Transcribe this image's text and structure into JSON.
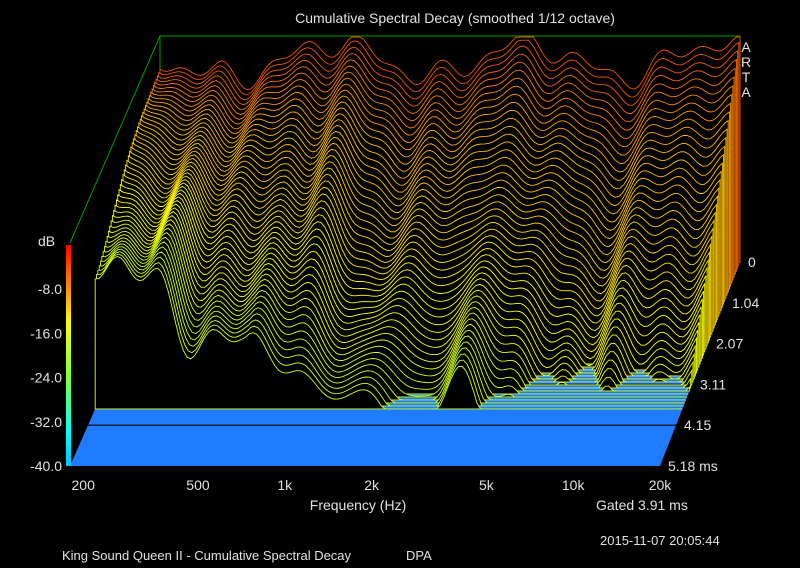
{
  "chart_data": {
    "type": "waterfall",
    "title": "Cumulative Spectral Decay (smoothed 1/12 octave)",
    "xlabel": "Frequency (Hz)",
    "x_scale": "log",
    "xlim": [
      180,
      20000
    ],
    "x_ticks": [
      "200",
      "500",
      "1k",
      "2k",
      "5k",
      "10k",
      "20k"
    ],
    "zlabel": "dB",
    "zlim": [
      -40,
      0
    ],
    "z_ticks": [
      "-8.0",
      "-16.0",
      "-24.0",
      "-32.0",
      "-40.0"
    ],
    "time_ticks": [
      "0",
      "1.04",
      "2.07",
      "3.11",
      "4.15",
      "5.18 ms"
    ],
    "time_range_ms": [
      0,
      5.18
    ],
    "gated": "Gated 3.91 ms",
    "colorscale": [
      "#cc0000",
      "#ff7a00",
      "#ffff00",
      "#00ff80",
      "#00ffff",
      "#40a0ff"
    ],
    "floor_color": "#1f7bff",
    "slices": 50
  },
  "watermark": [
    "A",
    "R",
    "T",
    "A"
  ],
  "footer": {
    "timestamp": "2015-11-07  20:05:44",
    "caption": "King Sound Queen II - Cumulative Spectral Decay",
    "mic": "DPA"
  }
}
